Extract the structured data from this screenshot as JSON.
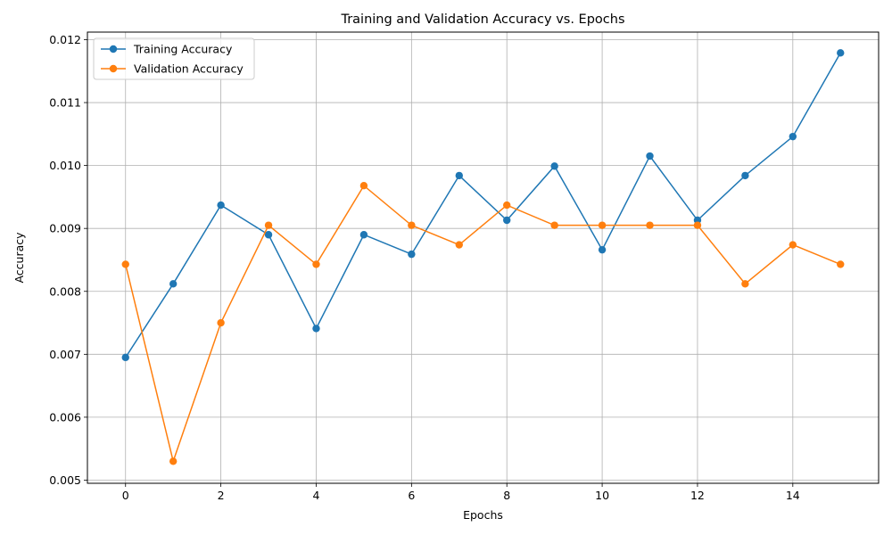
{
  "chart_data": {
    "type": "line",
    "title": "Training and Validation Accuracy vs. Epochs",
    "xlabel": "Epochs",
    "ylabel": "Accuracy",
    "xlim": [
      -0.8,
      15.8
    ],
    "ylim": [
      0.00495,
      0.01212
    ],
    "xticks": [
      0,
      2,
      4,
      6,
      8,
      10,
      12,
      14
    ],
    "xtick_labels": [
      "0",
      "2",
      "4",
      "6",
      "8",
      "10",
      "12",
      "14"
    ],
    "yticks": [
      0.005,
      0.006,
      0.007,
      0.008,
      0.009,
      0.01,
      0.011,
      0.012
    ],
    "ytick_labels": [
      "0.005",
      "0.006",
      "0.007",
      "0.008",
      "0.009",
      "0.010",
      "0.011",
      "0.012"
    ],
    "grid": true,
    "legend_position": "top-left",
    "x": [
      0,
      1,
      2,
      3,
      4,
      5,
      6,
      7,
      8,
      9,
      10,
      11,
      12,
      13,
      14,
      15
    ],
    "series": [
      {
        "name": "Training Accuracy",
        "color": "#1f77b4",
        "values": [
          0.00695,
          0.00812,
          0.00937,
          0.0089,
          0.00741,
          0.0089,
          0.00859,
          0.00984,
          0.00913,
          0.00999,
          0.00866,
          0.01015,
          0.00913,
          0.00984,
          0.01046,
          0.01179
        ]
      },
      {
        "name": "Validation Accuracy",
        "color": "#ff7f0e",
        "values": [
          0.00843,
          0.0053,
          0.0075,
          0.00905,
          0.00843,
          0.00968,
          0.00905,
          0.00874,
          0.00937,
          0.00905,
          0.00905,
          0.00905,
          0.00905,
          0.00812,
          0.00874,
          0.00843
        ]
      }
    ]
  }
}
